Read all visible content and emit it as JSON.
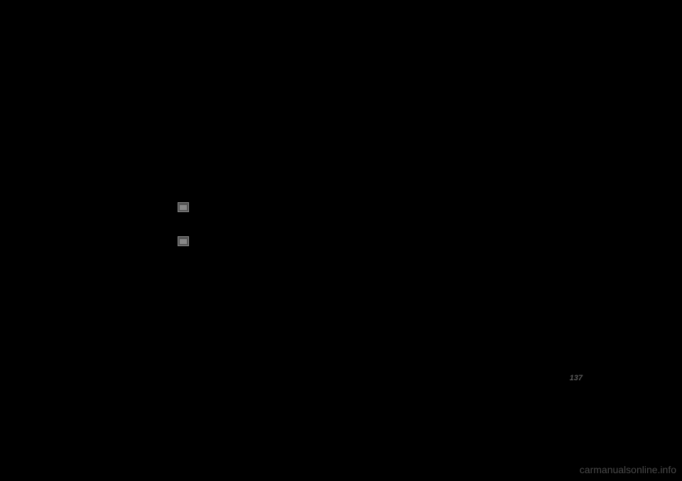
{
  "icons": {
    "icon1_name": "battery-icon",
    "icon2_name": "battery-icon"
  },
  "page": {
    "number": "137"
  },
  "watermark": {
    "text": "carmanualsonline.info"
  },
  "colors": {
    "background": "#000000",
    "icon_bg": "#555555",
    "icon_border": "#888888",
    "page_number_color": "#5a5a5a",
    "watermark_color": "#4a4a4a"
  }
}
